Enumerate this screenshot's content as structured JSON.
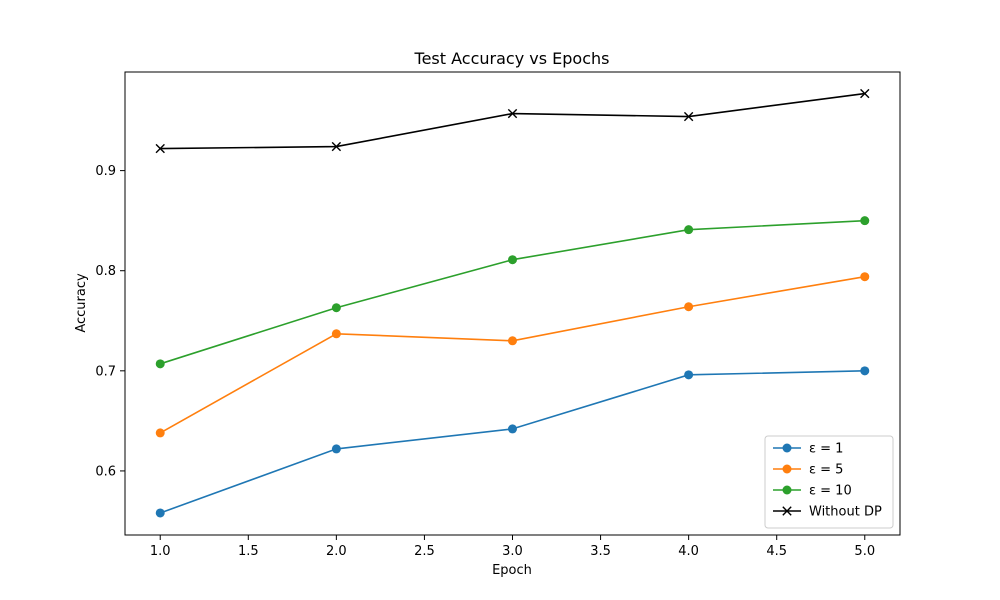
{
  "chart_data": {
    "type": "line",
    "title": "Test Accuracy vs Epochs",
    "xlabel": "Epoch",
    "ylabel": "Accuracy",
    "x": [
      1,
      2,
      3,
      4,
      5
    ],
    "xlim": [
      0.8,
      5.2
    ],
    "ylim": [
      0.536,
      0.9985
    ],
    "xticks": [
      1.0,
      1.5,
      2.0,
      2.5,
      3.0,
      3.5,
      4.0,
      4.5,
      5.0
    ],
    "xtick_labels": [
      "1.0",
      "1.5",
      "2.0",
      "2.5",
      "3.0",
      "3.5",
      "4.0",
      "4.5",
      "5.0"
    ],
    "yticks": [
      0.6,
      0.7,
      0.8,
      0.9
    ],
    "ytick_labels": [
      "0.6",
      "0.7",
      "0.8",
      "0.9"
    ],
    "grid": false,
    "legend_position": "bottom-right",
    "series": [
      {
        "name": "ε = 1",
        "color": "#1f77b4",
        "marker": "circle",
        "values": [
          0.558,
          0.622,
          0.642,
          0.696,
          0.7
        ]
      },
      {
        "name": "ε = 5",
        "color": "#ff7f0e",
        "marker": "circle",
        "values": [
          0.638,
          0.737,
          0.73,
          0.764,
          0.794
        ]
      },
      {
        "name": "ε = 10",
        "color": "#2ca02c",
        "marker": "circle",
        "values": [
          0.707,
          0.763,
          0.811,
          0.841,
          0.85
        ]
      },
      {
        "name": "Without DP",
        "color": "#000000",
        "marker": "x",
        "values": [
          0.922,
          0.924,
          0.957,
          0.954,
          0.977
        ]
      }
    ]
  }
}
